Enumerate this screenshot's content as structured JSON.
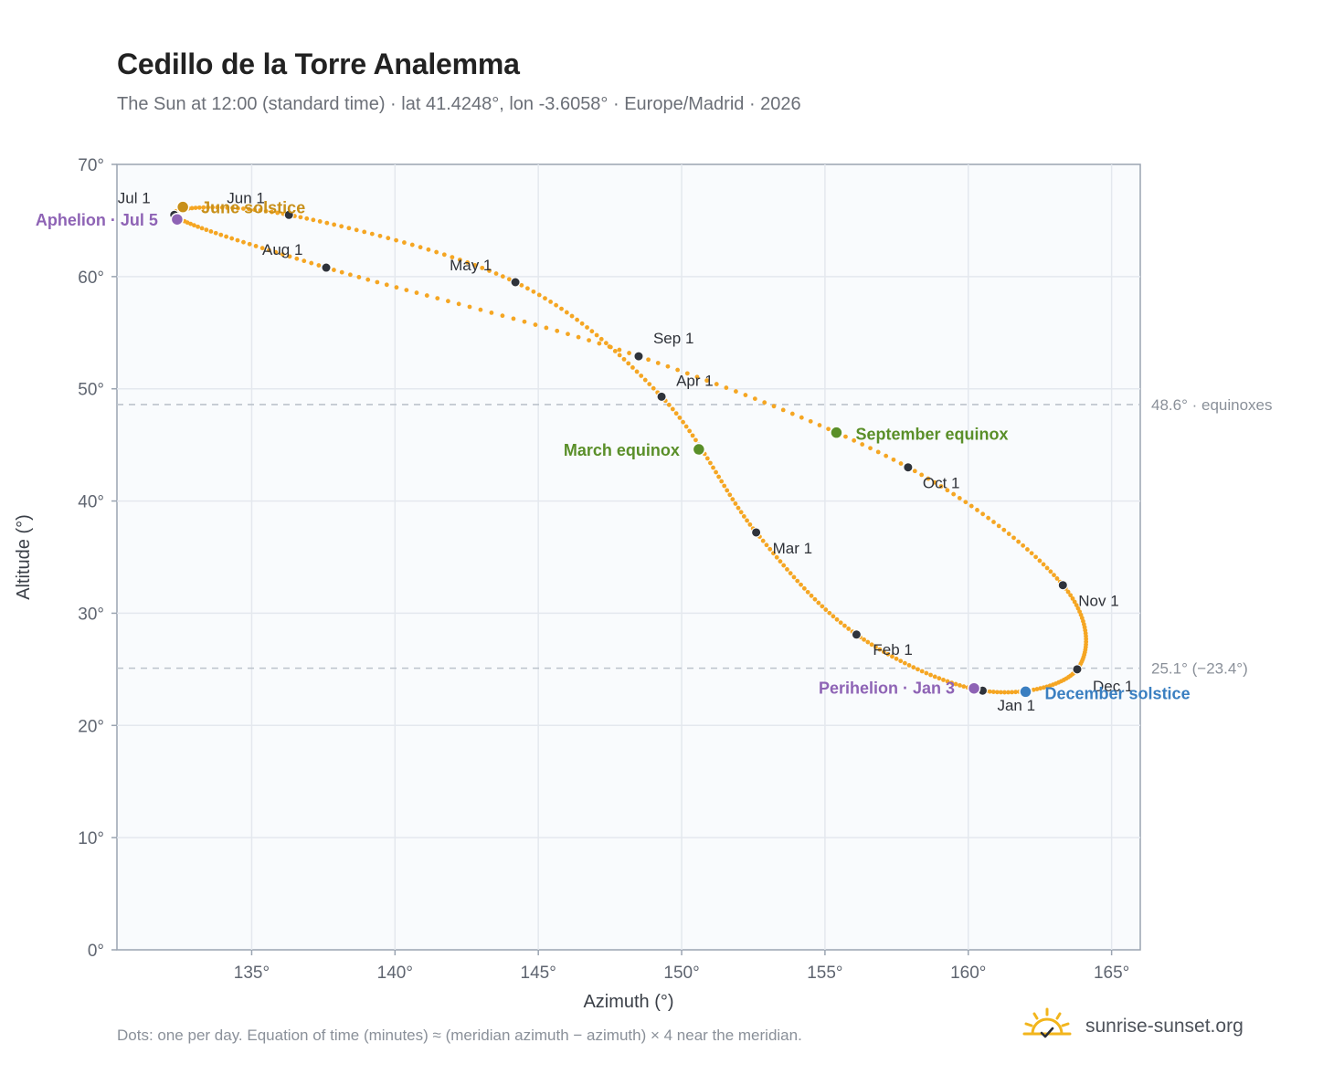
{
  "header": {
    "title": "Cedillo de la Torre Analemma",
    "subtitle": "The Sun at 12:00 (standard time) · lat 41.4248°, lon -3.6058° · Europe/Madrid · 2026"
  },
  "footer": {
    "note": "Dots: one per day. Equation of time (minutes) ≈ (meridian azimuth − azimuth) × 4 near the meridian.",
    "brand": "sunrise-sunset.org"
  },
  "colors": {
    "curve": "#f5a623",
    "month_marker": "#2f333b",
    "equinox": "#5a8f29",
    "june_solstice": "#c8901a",
    "december_solstice": "#3a7fc1",
    "apsis": "#8e63b5",
    "plot_bg": "#f9fbfd",
    "grid": "#e4e8ee",
    "ref_line": "#bcc3cc"
  },
  "icons": {
    "brand": "sun-check-icon"
  },
  "chart_data": {
    "type": "scatter",
    "title": "Cedillo de la Torre Analemma",
    "xlabel": "Azimuth (°)",
    "ylabel": "Altitude (°)",
    "xlim": [
      130.3,
      166
    ],
    "ylim": [
      0,
      70
    ],
    "x_ticks": [
      135,
      140,
      145,
      150,
      155,
      160,
      165
    ],
    "x_tick_labels": [
      "135°",
      "140°",
      "145°",
      "150°",
      "155°",
      "160°",
      "165°"
    ],
    "y_ticks": [
      0,
      10,
      20,
      30,
      40,
      50,
      60,
      70
    ],
    "y_tick_labels": [
      "0°",
      "10°",
      "20°",
      "30°",
      "40°",
      "50°",
      "60°",
      "70°"
    ],
    "grid": true,
    "month_starts": [
      {
        "label": "Jan 1",
        "az": 160.5,
        "alt": 23.1
      },
      {
        "label": "Feb 1",
        "az": 156.1,
        "alt": 28.1
      },
      {
        "label": "Mar 1",
        "az": 152.6,
        "alt": 37.2
      },
      {
        "label": "Apr 1",
        "az": 149.3,
        "alt": 49.3
      },
      {
        "label": "May 1",
        "az": 144.2,
        "alt": 59.5
      },
      {
        "label": "Jun 1",
        "az": 136.3,
        "alt": 65.5
      },
      {
        "label": "Jul 1",
        "az": 132.3,
        "alt": 65.5
      },
      {
        "label": "Aug 1",
        "az": 137.6,
        "alt": 60.8
      },
      {
        "label": "Sep 1",
        "az": 148.5,
        "alt": 52.9
      },
      {
        "label": "Oct 1",
        "az": 157.9,
        "alt": 43.0
      },
      {
        "label": "Nov 1",
        "az": 163.3,
        "alt": 32.5
      },
      {
        "label": "Dec 1",
        "az": 163.8,
        "alt": 25.0
      }
    ],
    "events": [
      {
        "label": "March equinox",
        "az": 150.6,
        "alt": 44.6,
        "color": "#5a8f29"
      },
      {
        "label": "June solstice",
        "az": 132.6,
        "alt": 66.2,
        "color": "#c8901a"
      },
      {
        "label": "September equinox",
        "az": 155.4,
        "alt": 46.1,
        "color": "#5a8f29"
      },
      {
        "label": "December solstice",
        "az": 162.0,
        "alt": 23.0,
        "color": "#3a7fc1"
      },
      {
        "label": "Perihelion · Jan 3",
        "az": 160.2,
        "alt": 23.3,
        "color": "#8e63b5"
      },
      {
        "label": "Aphelion · Jul 5",
        "az": 132.4,
        "alt": 65.1,
        "color": "#8e63b5"
      }
    ],
    "reference_lines": [
      {
        "label": "48.6° · equinoxes",
        "alt": 48.6
      },
      {
        "label": "25.1° (−23.4°)",
        "alt": 25.1
      }
    ]
  }
}
